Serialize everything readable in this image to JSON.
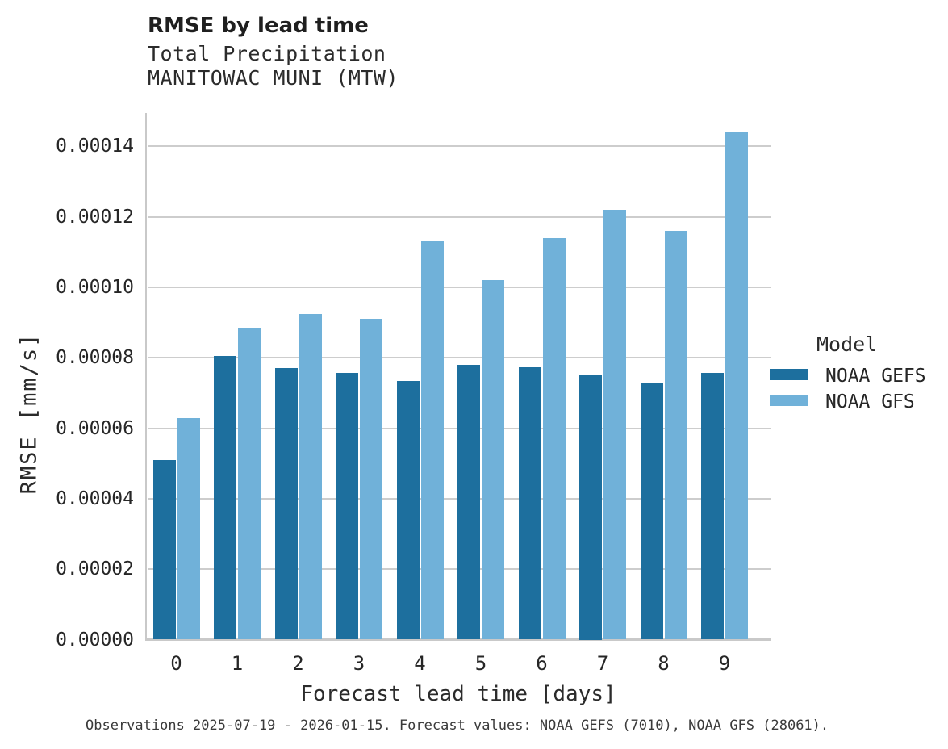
{
  "header": {
    "title": "RMSE by lead time",
    "subtitle_line1": "Total Precipitation",
    "subtitle_line2": "MANITOWAC MUNI (MTW)"
  },
  "footer": {
    "note": "Observations 2025-07-19 - 2026-01-15. Forecast values: NOAA GEFS (7010), NOAA GFS (28061)."
  },
  "legend": {
    "title": "Model",
    "entries": [
      {
        "label": "NOAA GEFS",
        "color": "#1d6f9e"
      },
      {
        "label": "NOAA GFS",
        "color": "#70b1d9"
      }
    ],
    "position": "right"
  },
  "chart_data": {
    "type": "bar",
    "title": "RMSE by lead time",
    "subtitle": [
      "Total Precipitation",
      "MANITOWAC MUNI (MTW)"
    ],
    "xlabel": "Forecast lead time [days]",
    "ylabel": "RMSE [mm/s]",
    "categories": [
      "0",
      "1",
      "2",
      "3",
      "4",
      "5",
      "6",
      "7",
      "8",
      "9"
    ],
    "series": [
      {
        "name": "NOAA GEFS",
        "color": "#1d6f9e",
        "values": [
          5.1e-05,
          8.05e-05,
          7.7e-05,
          7.58e-05,
          7.35e-05,
          7.8e-05,
          7.73e-05,
          7.5e-05,
          7.27e-05,
          7.58e-05
        ]
      },
      {
        "name": "NOAA GFS",
        "color": "#70b1d9",
        "values": [
          6.3e-05,
          8.85e-05,
          9.25e-05,
          9.1e-05,
          0.000113,
          0.000102,
          0.000114,
          0.000122,
          0.000116,
          0.000144
        ]
      }
    ],
    "ylim": [
      0,
      0.00015
    ],
    "yticks": [
      0.0,
      2e-05,
      4e-05,
      6e-05,
      8e-05,
      0.0001,
      0.00012,
      0.00014
    ],
    "ytick_labels": [
      "0.00000",
      "0.00002",
      "0.00004",
      "0.00006",
      "0.00008",
      "0.00010",
      "0.00012",
      "0.00014"
    ],
    "grid": "horizontal",
    "legend_title": "Model",
    "legend_position": "right"
  },
  "colors": {
    "series_dark": "#1d6f9e",
    "series_light": "#70b1d9",
    "gridline": "#cdcdcd",
    "spine": "#c9c9c9",
    "text": "#262626",
    "background": "#ffffff"
  }
}
